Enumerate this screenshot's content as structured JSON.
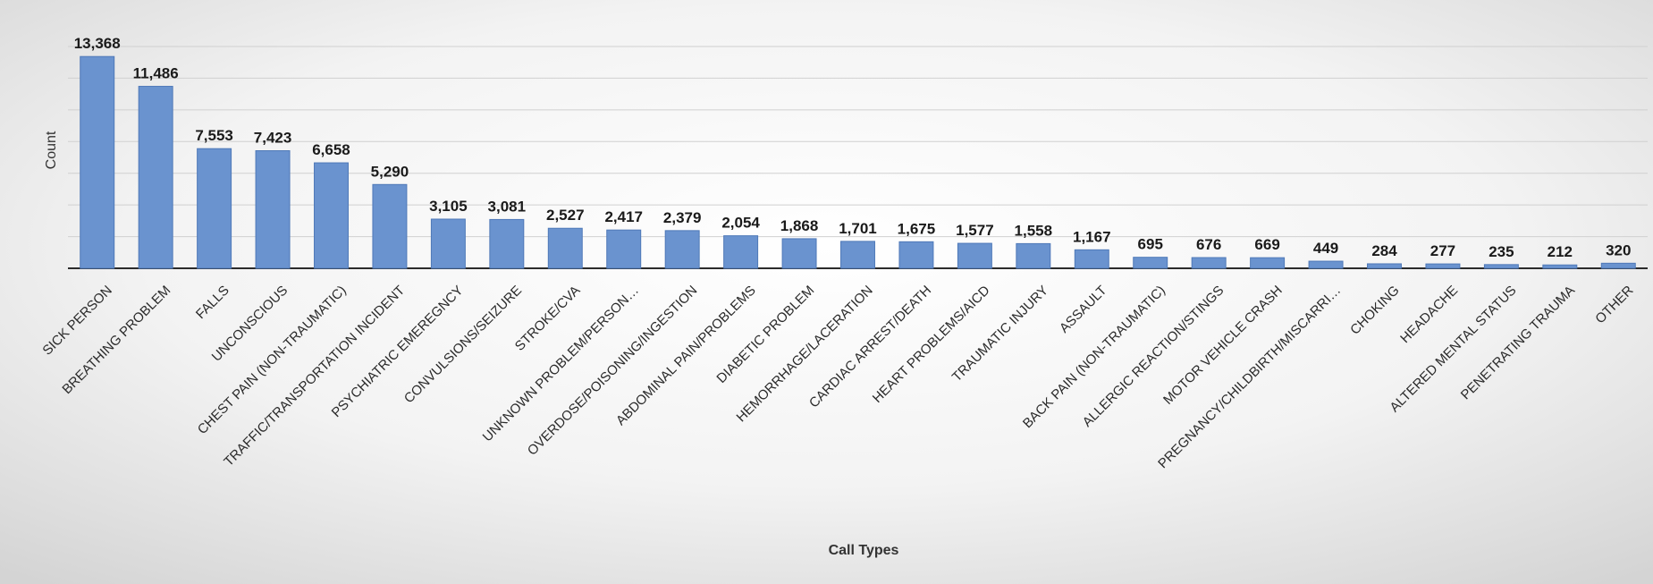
{
  "chart_data": {
    "type": "bar",
    "xlabel": "Call Types",
    "ylabel": "Count",
    "ylim": [
      0,
      14000
    ],
    "grid": true,
    "legend": "none",
    "colors": {
      "bar_fill": "#6a93cf",
      "bar_stroke": "#4f79b8",
      "background_light": "#ffffff",
      "background_dark": "#d4d4d4"
    },
    "categories": [
      "SICK PERSON",
      "BREATHING PROBLEM",
      "FALLS",
      "UNCONSCIOUS",
      "CHEST PAIN (NON-TRAUMATIC)",
      "TRAFFIC/TRANSPORTATION INCIDENT",
      "PSYCHIATRIC EMEREGNCY",
      "CONVULSIONS/SEIZURE",
      "STROKE/CVA",
      "UNKNOWN PROBLEM/PERSON…",
      "OVERDOSE/POISONING/INGESTION",
      "ABDOMINAL PAIN/PROBLEMS",
      "DIABETIC PROBLEM",
      "HEMORRHAGE/LACERATION",
      "CARDIAC ARREST/DEATH",
      "HEART PROBLEMS/AICD",
      "TRAUMATIC INJURY",
      "ASSAULT",
      "BACK PAIN (NON-TRAUMATIC)",
      "ALLERGIC REACTION/STINGS",
      "MOTOR VEHICLE CRASH",
      "PREGNANCY/CHILDBIRTH/MISCARRI…",
      "CHOKING",
      "HEADACHE",
      "ALTERED MENTAL STATUS",
      "PENETRATING TRAUMA",
      "OTHER"
    ],
    "values": [
      13368,
      11486,
      7553,
      7423,
      6658,
      5290,
      3105,
      3081,
      2527,
      2417,
      2379,
      2054,
      1868,
      1701,
      1675,
      1577,
      1558,
      1167,
      695,
      676,
      669,
      449,
      284,
      277,
      235,
      212,
      320
    ],
    "data_labels": [
      "13,368",
      "11,486",
      "7,553",
      "7,423",
      "6,658",
      "5,290",
      "3,105",
      "3,081",
      "2,527",
      "2,417",
      "2,379",
      "2,054",
      "1,868",
      "1,701",
      "1,675",
      "1,577",
      "1,558",
      "1,167",
      "695",
      "676",
      "669",
      "449",
      "284",
      "277",
      "235",
      "212",
      "320"
    ]
  }
}
